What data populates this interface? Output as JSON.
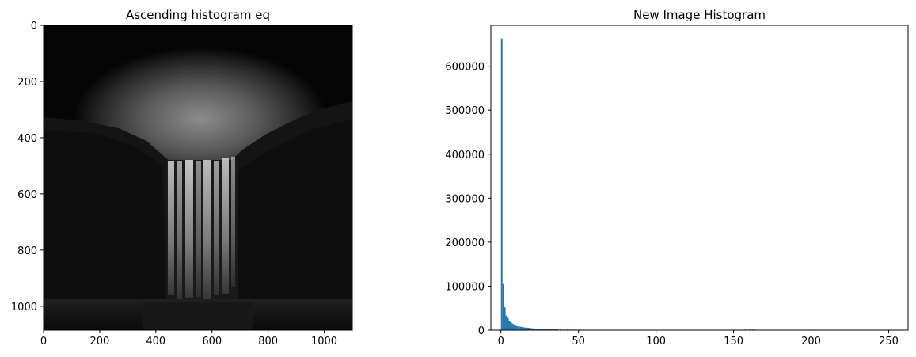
{
  "chart_data": [
    {
      "type": "image",
      "title": "Ascending histogram eq",
      "xlim": [
        0,
        1100
      ],
      "ylim": [
        1085,
        0
      ],
      "xticks": [
        0,
        200,
        400,
        600,
        800,
        1000
      ],
      "yticks": [
        0,
        200,
        400,
        600,
        800,
        1000
      ],
      "colormap": "gray"
    },
    {
      "type": "bar",
      "title": "New Image Histogram",
      "xlim": [
        -6.5,
        262.5
      ],
      "ylim": [
        0,
        693000
      ],
      "xticks": [
        0,
        50,
        100,
        150,
        200,
        250
      ],
      "yticks": [
        0,
        100000,
        200000,
        300000,
        400000,
        500000,
        600000
      ],
      "color": "#1f77b4",
      "bins": [
        0,
        1,
        2,
        3,
        4,
        5,
        6,
        7,
        8,
        9,
        10,
        11,
        12,
        13,
        14,
        15,
        16,
        17,
        18,
        19,
        20,
        21,
        22,
        23,
        24,
        25,
        26,
        27,
        28,
        29,
        30,
        31,
        32,
        33,
        34,
        35,
        36,
        38,
        40,
        42,
        44,
        46,
        48,
        50,
        53,
        55,
        153,
        157,
        160,
        162,
        163
      ],
      "values": [
        663000,
        105000,
        52000,
        33000,
        28000,
        20000,
        18000,
        15000,
        13000,
        10000,
        9000,
        8500,
        8000,
        7500,
        6500,
        6000,
        6000,
        5500,
        5000,
        4500,
        4000,
        4000,
        3500,
        3500,
        3500,
        3000,
        3000,
        3000,
        2800,
        2600,
        2500,
        2400,
        2300,
        2200,
        2000,
        2000,
        1900,
        1800,
        1700,
        1600,
        1500,
        1400,
        1300,
        1200,
        1100,
        1000,
        900,
        1400,
        1600,
        1500,
        1300
      ]
    }
  ]
}
